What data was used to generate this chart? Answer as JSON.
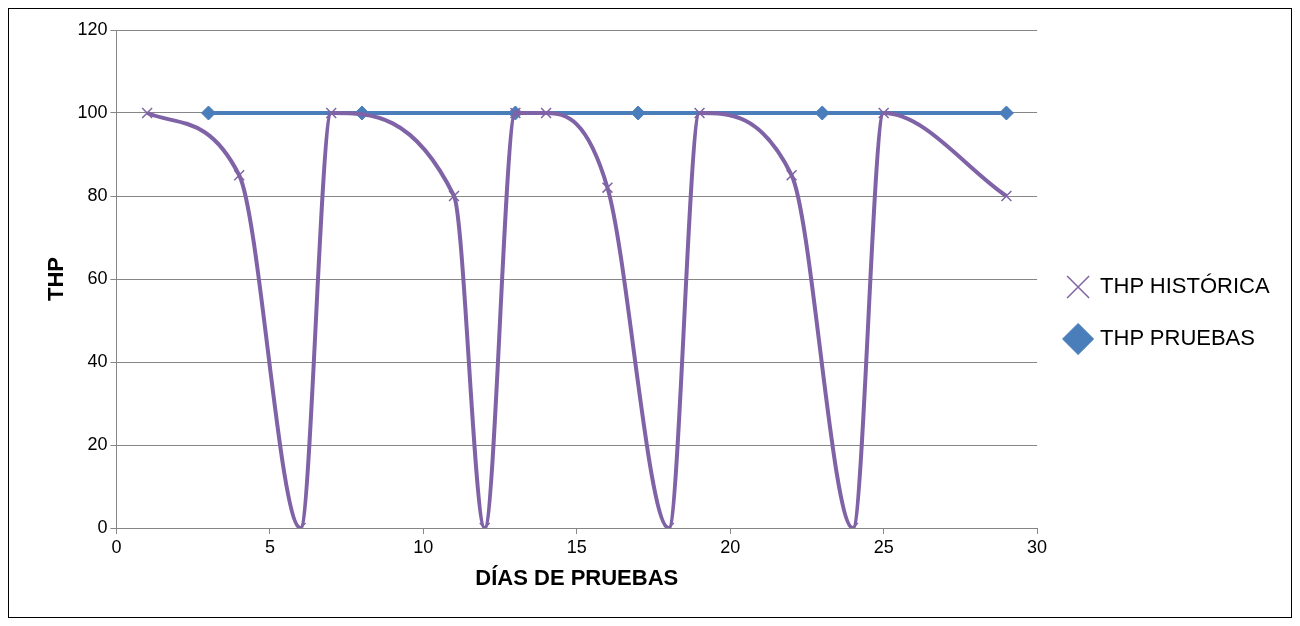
{
  "chart_data": {
    "type": "line",
    "xlabel": "DÍAS DE PRUEBAS",
    "ylabel": "THP",
    "xlim": [
      0,
      30
    ],
    "xticks": [
      0,
      5,
      10,
      15,
      20,
      25,
      30
    ],
    "ylim": [
      0,
      120
    ],
    "yticks": [
      0,
      20,
      40,
      60,
      80,
      100,
      120
    ],
    "grid": "y",
    "legend": "right",
    "line_style": "solid",
    "series": [
      {
        "name": "THP PRUEBAS",
        "color": "#4a7ebb",
        "marker": "diamond",
        "x": [
          3,
          8,
          13,
          17,
          23,
          29
        ],
        "values": [
          100,
          100,
          100,
          100,
          100,
          100
        ]
      },
      {
        "name": "THP HISTÓRICA",
        "color": "#7f63a6",
        "marker": "cross",
        "x": [
          1,
          4,
          6,
          7,
          11,
          12,
          13,
          14,
          16,
          18,
          19,
          22,
          24,
          25,
          29
        ],
        "values": [
          100,
          85,
          0,
          100,
          80,
          0,
          100,
          100,
          82,
          0,
          100,
          85,
          0,
          100,
          80
        ]
      }
    ]
  }
}
